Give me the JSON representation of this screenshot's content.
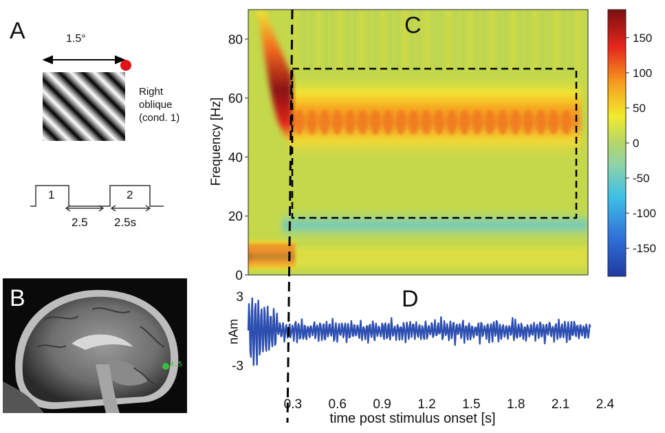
{
  "panel_a": {
    "letter": "A",
    "angle_label": "1.5°",
    "caption": [
      "Right",
      "oblique",
      "(cond. 1)"
    ],
    "dot_color": "#e0131b",
    "timeline": {
      "block1": "1",
      "block2": "2",
      "gap_label": "2.5",
      "duration_label": "2.5s"
    }
  },
  "panel_b": {
    "letter": "B",
    "marker_label": "4.5",
    "marker_color": "#2fd33a"
  },
  "chart_data": [
    {
      "type": "heatmap",
      "panel_letter": "C",
      "ylabel": "Frequency [Hz]",
      "yticks": [
        0,
        20,
        40,
        60,
        80
      ],
      "ylim": [
        0,
        90
      ],
      "xlim": [
        0,
        2.4
      ],
      "colorbar": {
        "ticks": [
          150,
          100,
          50,
          0,
          -50,
          -100,
          -150
        ],
        "range": [
          -190,
          190
        ],
        "colormap": "jet"
      },
      "features": [
        {
          "freq_band": [
            40,
            90
          ],
          "time": [
            0.0,
            0.2
          ],
          "value": 170,
          "desc_id": "onset-gamma"
        },
        {
          "freq_band": [
            42,
            62
          ],
          "time": [
            0.25,
            2.3
          ],
          "value": 80,
          "desc_id": "sustained-gamma"
        },
        {
          "freq_band": [
            5,
            10
          ],
          "time": [
            0.0,
            0.2
          ],
          "value": 160,
          "desc_id": "low-frequency-onset"
        },
        {
          "freq_band": [
            15,
            22
          ],
          "time": [
            0.3,
            2.3
          ],
          "value": -40,
          "desc_id": "beta-suppression"
        }
      ],
      "dashed_box": {
        "time": [
          0.25,
          2.3
        ],
        "freq": [
          20,
          70
        ]
      },
      "stimulus_line_time": 0.25
    },
    {
      "type": "line",
      "panel_letter": "D",
      "ylabel": "nAm",
      "yticks": [
        3,
        -3
      ],
      "ylim": [
        -4,
        4
      ],
      "xlabel": "time post stimulus onset [s]",
      "xticks": [
        "0.3",
        "0.6",
        "0.9",
        "1.2",
        "1.5",
        "1.8",
        "2.1",
        "2.4"
      ],
      "xlim": [
        0,
        2.4
      ],
      "line_color": "#2d4fb0",
      "signal_end": 2.3,
      "onset_amplitude": 3.8,
      "sustained_amplitude": 0.9
    }
  ]
}
